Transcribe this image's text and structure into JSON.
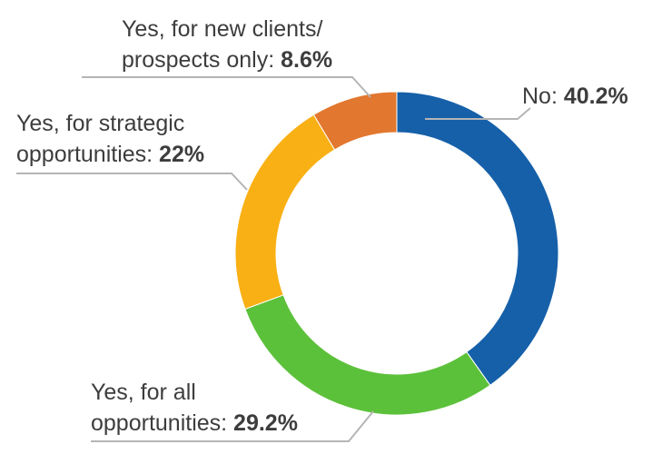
{
  "chart_data": {
    "type": "pie",
    "style": "donut",
    "title": "",
    "legend": "none",
    "series": [
      {
        "label": "No",
        "value": 40.2,
        "value_text": "40.2%",
        "color": "#1660a9",
        "label_lines": [
          "No: "
        ]
      },
      {
        "label": "Yes, for all opportunities",
        "value": 29.2,
        "value_text": "29.2%",
        "color": "#5cc13a",
        "label_lines": [
          "Yes, for all",
          "opportunities: "
        ]
      },
      {
        "label": "Yes, for strategic opportunities",
        "value": 22,
        "value_text": "22%",
        "color": "#f9b014",
        "label_lines": [
          "Yes, for strategic",
          "opportunities: "
        ]
      },
      {
        "label": "Yes, for new clients/prospects only",
        "value": 8.6,
        "value_text": "8.6%",
        "color": "#e2772f",
        "label_lines": [
          "Yes, for new clients/",
          "prospects only: "
        ]
      }
    ]
  }
}
